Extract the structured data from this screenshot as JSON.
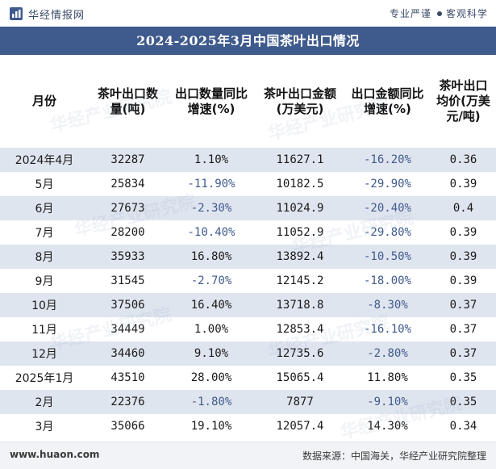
{
  "header": {
    "brand": "华经情报网",
    "tagline_left": "专业严谨",
    "tagline_right": "客观科学"
  },
  "title": "2024-2025年3月中国茶叶出口情况",
  "columns": [
    "月份",
    "茶叶出口数量(吨)",
    "出口数量同比增速(%)",
    "茶叶出口金额(万美元)",
    "出口金额同比增速(%)",
    "茶叶出口均价(万美元/吨)"
  ],
  "rows": [
    {
      "month": "2024年4月",
      "qty": "32287",
      "qty_yoy": "1.10%",
      "amt": "11627.1",
      "amt_yoy": "-16.20%",
      "price": "0.36"
    },
    {
      "month": "5月",
      "qty": "25834",
      "qty_yoy": "-11.90%",
      "amt": "10182.5",
      "amt_yoy": "-29.90%",
      "price": "0.39"
    },
    {
      "month": "6月",
      "qty": "27673",
      "qty_yoy": "-2.30%",
      "amt": "11024.9",
      "amt_yoy": "-20.40%",
      "price": "0.4"
    },
    {
      "month": "7月",
      "qty": "28200",
      "qty_yoy": "-10.40%",
      "amt": "11052.9",
      "amt_yoy": "-29.80%",
      "price": "0.39"
    },
    {
      "month": "8月",
      "qty": "35933",
      "qty_yoy": "16.80%",
      "amt": "13892.4",
      "amt_yoy": "-10.50%",
      "price": "0.39"
    },
    {
      "month": "9月",
      "qty": "31545",
      "qty_yoy": "-2.70%",
      "amt": "12145.2",
      "amt_yoy": "-18.00%",
      "price": "0.39"
    },
    {
      "month": "10月",
      "qty": "37506",
      "qty_yoy": "16.40%",
      "amt": "13718.8",
      "amt_yoy": "-8.30%",
      "price": "0.37"
    },
    {
      "month": "11月",
      "qty": "34449",
      "qty_yoy": "1.00%",
      "amt": "12853.4",
      "amt_yoy": "-16.10%",
      "price": "0.37"
    },
    {
      "month": "12月",
      "qty": "34460",
      "qty_yoy": "9.10%",
      "amt": "12735.6",
      "amt_yoy": "-2.80%",
      "price": "0.37"
    },
    {
      "month": "2025年1月",
      "qty": "43510",
      "qty_yoy": "28.00%",
      "amt": "15065.4",
      "amt_yoy": "11.80%",
      "price": "0.35"
    },
    {
      "month": "2月",
      "qty": "22376",
      "qty_yoy": "-1.80%",
      "amt": "7877",
      "amt_yoy": "-9.10%",
      "price": "0.35"
    },
    {
      "month": "3月",
      "qty": "35066",
      "qty_yoy": "19.10%",
      "amt": "12057.4",
      "amt_yoy": "14.30%",
      "price": "0.34"
    }
  ],
  "footer": {
    "website": "www.huaon.com",
    "source": "数据来源：中国海关，华经产业研究院整理"
  },
  "watermark": "华经产业研究院",
  "colors": {
    "title_bg": "#3f5a8c",
    "stripe": "#dfe5ef",
    "negative": "#3f5a8c"
  }
}
